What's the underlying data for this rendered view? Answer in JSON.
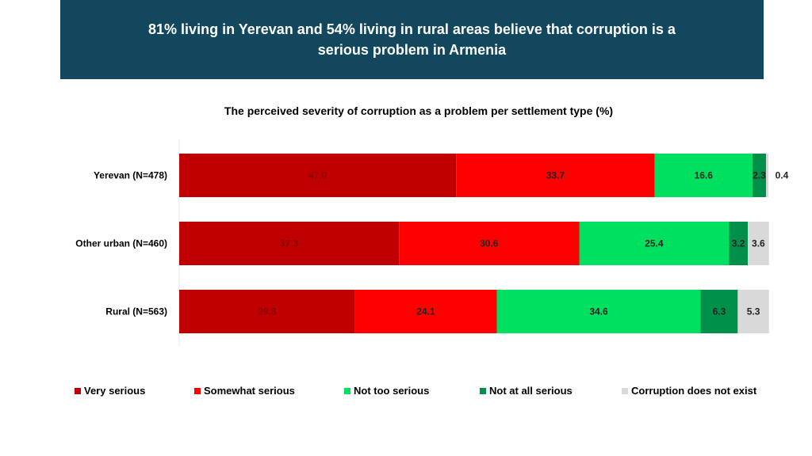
{
  "banner": {
    "title": "81% living in Yerevan and 54% living in rural areas believe that corruption is a serious problem in Armenia"
  },
  "chart_data": {
    "type": "bar",
    "orientation": "horizontal",
    "stacked": true,
    "title": "The perceived severity of corruption as a problem per settlement type (%)",
    "categories": [
      "Yerevan (N=478)",
      "Other urban (N=460)",
      "Rural (N=563)"
    ],
    "series": [
      {
        "name": "Very serious",
        "color": "#c00000",
        "values": [
          47.0,
          37.3,
          29.8
        ]
      },
      {
        "name": "Somewhat serious",
        "color": "#ff0000",
        "values": [
          33.7,
          30.6,
          24.1
        ]
      },
      {
        "name": "Not too serious",
        "color": "#00e060",
        "values": [
          16.6,
          25.4,
          34.6
        ]
      },
      {
        "name": "Not at all serious",
        "color": "#00904a",
        "values": [
          2.3,
          3.2,
          6.3
        ]
      },
      {
        "name": "Corruption does not exist",
        "color": "#d9d9d9",
        "values": [
          0.4,
          3.6,
          5.3
        ]
      }
    ],
    "value_labels": [
      [
        "47.0",
        "33.7",
        "16.6",
        "2.3",
        "0.4"
      ],
      [
        "37.3",
        "30.6",
        "25.4",
        "3.2",
        "3.6"
      ],
      [
        "29.8",
        "24.1",
        "34.6",
        "6.3",
        "5.3"
      ]
    ],
    "xlim": [
      0,
      100
    ],
    "grid": false,
    "legend_position": "bottom"
  }
}
